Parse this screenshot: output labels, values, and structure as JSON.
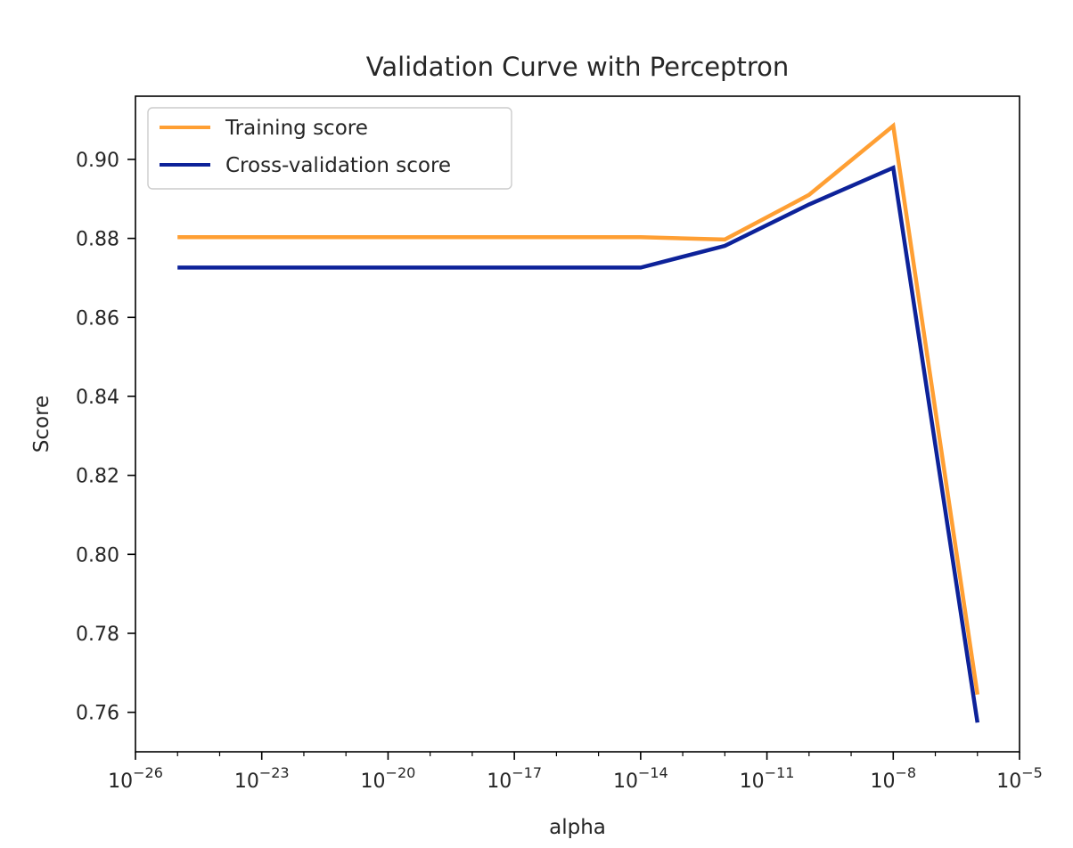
{
  "chart_data": {
    "type": "line",
    "title": "Validation Curve with Perceptron",
    "xlabel": "alpha",
    "ylabel": "Score",
    "xscale": "log",
    "xlim": [
      1e-26,
      1e-05
    ],
    "ylim": [
      0.75,
      0.916
    ],
    "x": [
      1e-25,
      1e-14,
      1e-12,
      1e-10,
      1e-08,
      1e-06
    ],
    "series": [
      {
        "name": "Training score",
        "color": "#ff9f33",
        "values": [
          0.8803,
          0.8803,
          0.8797,
          0.891,
          0.9085,
          0.7645
        ]
      },
      {
        "name": "Cross-validation score",
        "color": "#0d2299",
        "values": [
          0.8726,
          0.8726,
          0.8781,
          0.8886,
          0.8979,
          0.7574
        ]
      }
    ],
    "y_ticks": [
      0.76,
      0.78,
      0.8,
      0.82,
      0.84,
      0.86,
      0.88,
      0.9
    ],
    "y_tick_labels": [
      "0.76",
      "0.78",
      "0.80",
      "0.82",
      "0.84",
      "0.86",
      "0.88",
      "0.90"
    ],
    "x_ticks": [
      {
        "base": "10",
        "exp": "−26",
        "value": 1e-26
      },
      {
        "base": "10",
        "exp": "−23",
        "value": 1e-23
      },
      {
        "base": "10",
        "exp": "−20",
        "value": 1e-20
      },
      {
        "base": "10",
        "exp": "−17",
        "value": 1e-17
      },
      {
        "base": "10",
        "exp": "−14",
        "value": 1e-14
      },
      {
        "base": "10",
        "exp": "−11",
        "value": 1e-11
      },
      {
        "base": "10",
        "exp": "−8",
        "value": 1e-08
      },
      {
        "base": "10",
        "exp": "−5",
        "value": 1e-05
      }
    ],
    "legend_position": "upper-left",
    "grid": false
  }
}
